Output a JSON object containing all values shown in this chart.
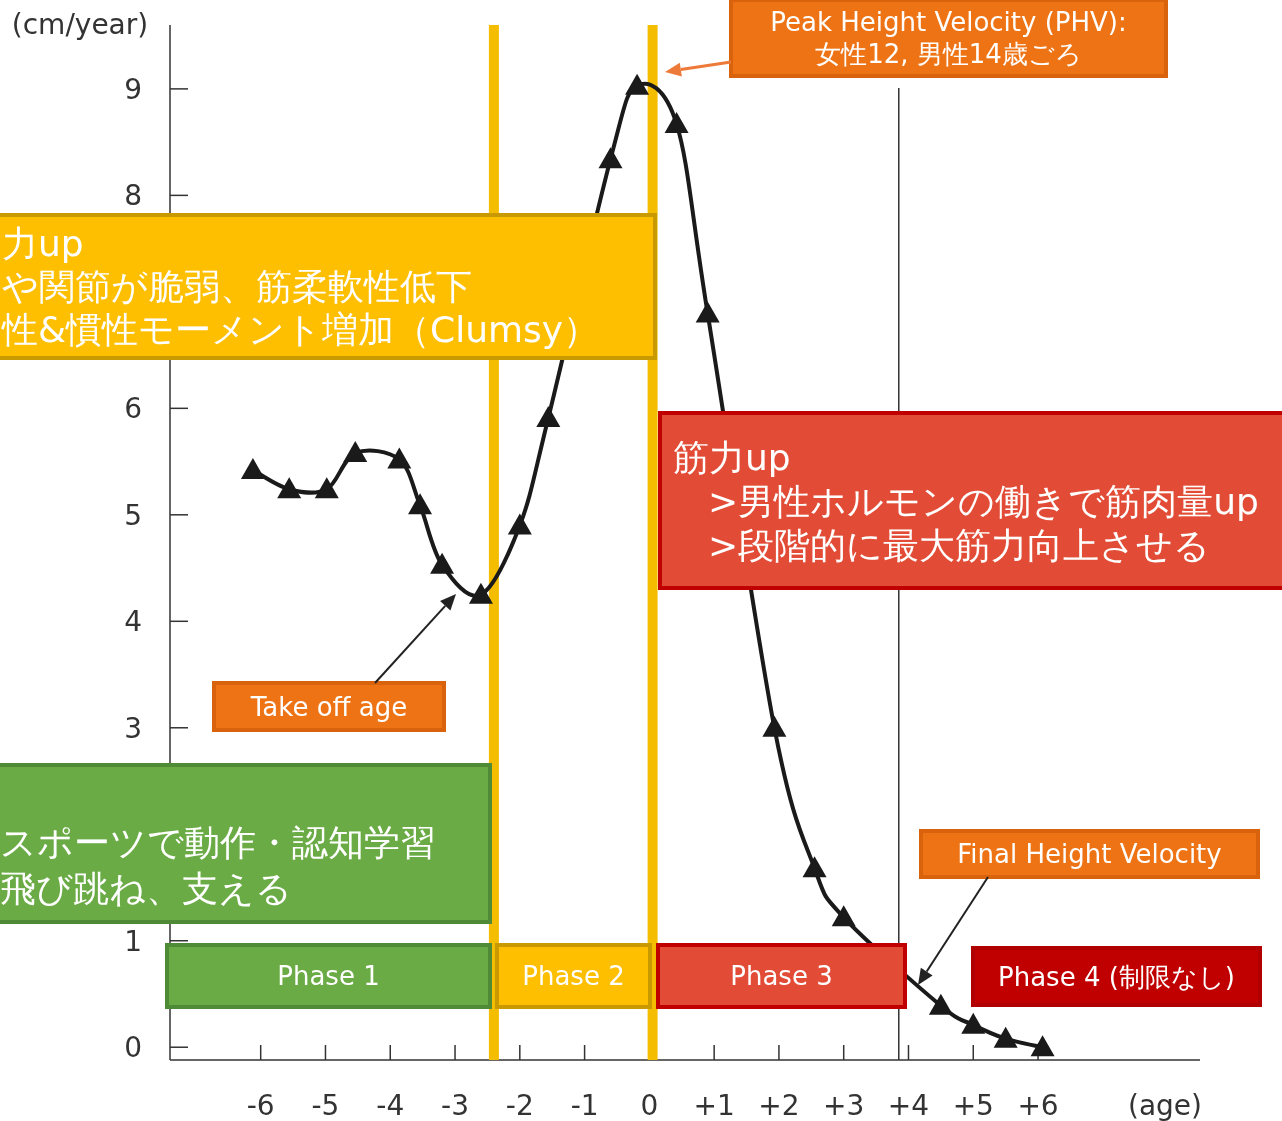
{
  "chart_data": {
    "type": "line",
    "ylabel": "(cm/year)",
    "xlabel": "(age)",
    "xlim": [
      -7.4,
      8.5
    ],
    "ylim": [
      -0.12,
      9.6
    ],
    "xticks": [
      -6,
      -5,
      -4,
      -3,
      -2,
      -1,
      0,
      {
        "value": 1,
        "label": "+1"
      },
      {
        "value": 2,
        "label": "+2"
      },
      {
        "value": 3,
        "label": "+3"
      },
      {
        "value": 4,
        "label": "+4"
      },
      {
        "value": 5,
        "label": "+5"
      },
      {
        "value": 6,
        "label": "+6"
      }
    ],
    "yticks": [
      0,
      1,
      3,
      4,
      5,
      6,
      8,
      9
    ],
    "x": [
      -6.12,
      -5.56,
      -4.98,
      -4.54,
      -3.86,
      -3.54,
      -3.2,
      -2.6,
      -2.0,
      -1.56,
      -0.6,
      -0.19,
      0.42,
      0.9,
      1.93,
      2.55,
      3.0,
      4.5,
      5.0,
      5.5,
      6.07
    ],
    "series": [
      {
        "color": "#1a1a1a",
        "values": [
          5.42,
          5.24,
          5.24,
          5.58,
          5.52,
          5.09,
          4.53,
          4.25,
          4.9,
          5.91,
          8.34,
          9.03,
          8.67,
          6.89,
          3.0,
          1.68,
          1.22,
          0.39,
          0.21,
          0.08,
          0.0
        ]
      }
    ],
    "marker": "triangle",
    "line_style": "solid",
    "ref_lines": [
      {
        "axis": "x",
        "value": -2.4,
        "color": "#f5bd00"
      },
      {
        "axis": "x",
        "value": 0.05,
        "color": "#f5bd00"
      },
      {
        "axis": "x",
        "value": 3.85,
        "color": "#333333"
      }
    ],
    "annotations": [
      "Peak Height Velocity (PHV):\n女性12, 男性14歳ごろ",
      "力up",
      "や関節が脆弱、筋柔軟性低下",
      "性&慣性モーメント増加（Clumsy）",
      "筋力up",
      ">男性ホルモンの働きで筋肉量up",
      ">段階的に最大筋力向上させる",
      "スポーツで動作・認知学習",
      "飛び跳ね、支える",
      "Take off age",
      "Final Height Velocity",
      "Phase 1",
      "Phase 2",
      "Phase 3",
      "Phase 4 (制限なし)"
    ]
  }
}
